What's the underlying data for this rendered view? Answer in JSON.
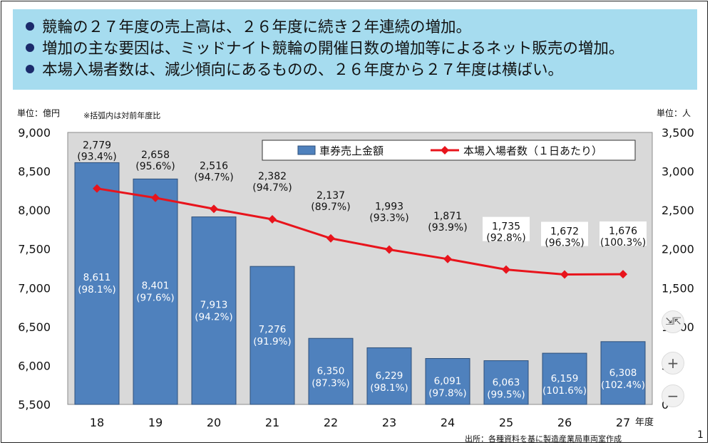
{
  "banner": {
    "lines": [
      "競輪の２７年度の売上高は、２６年度に続き２年連続の増加。",
      "増加の主な要因は、ミッドナイト競輪の開催日数の増加等によるネット販売の増加。",
      "本場入場者数は、減少傾向にあるものの、２６年度から２７年度は横ばい。"
    ],
    "bg_color": "#a6dcef"
  },
  "chart_data": {
    "type": "bar",
    "categories": [
      "18",
      "19",
      "20",
      "21",
      "22",
      "23",
      "24",
      "25",
      "26",
      "27"
    ],
    "series": [
      {
        "name": "車券売上金額",
        "kind": "bar",
        "axis": "left",
        "color": "#4f81bd",
        "values": [
          8611,
          8401,
          7913,
          7276,
          6350,
          6229,
          6091,
          6063,
          6159,
          6308
        ],
        "ratios": [
          "(98.1%)",
          "(97.6%)",
          "(94.2%)",
          "(91.9%)",
          "(87.3%)",
          "(98.1%)",
          "(97.8%)",
          "(99.5%)",
          "(101.6%)",
          "(102.4%)"
        ]
      },
      {
        "name": "本場入場者数（１日あたり）",
        "kind": "line",
        "axis": "right",
        "color": "#e8141c",
        "values": [
          2779,
          2658,
          2516,
          2382,
          2137,
          1993,
          1871,
          1735,
          1672,
          1676
        ],
        "ratios": [
          "(93.4%)",
          "(95.6%)",
          "(94.7%)",
          "(94.7%)",
          "(89.7%)",
          "(93.3%)",
          "(93.9%)",
          "(92.8%)",
          "(96.3%)",
          "(100.3%)"
        ]
      }
    ],
    "y_left": {
      "ylim": [
        5500,
        9000
      ],
      "ticks": [
        "5,500",
        "6,000",
        "6,500",
        "7,000",
        "7,500",
        "8,000",
        "8,500",
        "9,000"
      ]
    },
    "y_right": {
      "ylim": [
        0,
        3500
      ],
      "ticks": [
        "0",
        "500",
        "1,000",
        "1,500",
        "2,000",
        "2,500",
        "3,000",
        "3,500"
      ]
    },
    "xlabel": "年度",
    "unit_left": "単位：億円",
    "unit_right": "単位：人",
    "note": "※括弧内は対前年度比",
    "legend_position": "top-right",
    "grid": false,
    "plot_bg": "#d9d9d9"
  },
  "footer": {
    "source": "出所：各種資料を基に製造産業局車両室作成",
    "page_number": "1"
  },
  "zoom_controls": {
    "collapse_icon": "collapse-icon",
    "zoom_in": "+",
    "zoom_out": "−"
  }
}
